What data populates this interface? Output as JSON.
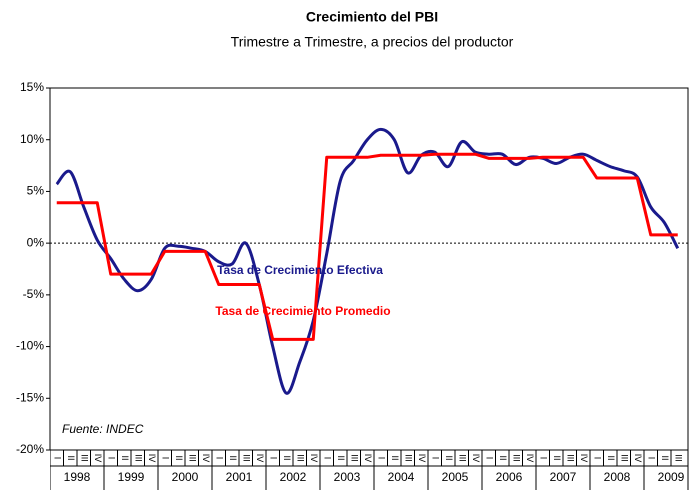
{
  "chart_data": {
    "type": "line",
    "title": "Crecimiento del PBI",
    "subtitle": "Trimestre a Trimestre, a precios del productor",
    "annotation": "Fuente: INDEC",
    "years": [
      "1998",
      "1999",
      "2000",
      "2001",
      "2002",
      "2003",
      "2004",
      "2005",
      "2006",
      "2007",
      "2008",
      "2009"
    ],
    "categories": [
      "I",
      "II",
      "III",
      "IV",
      "I",
      "II",
      "III",
      "IV",
      "I",
      "II",
      "III",
      "IV",
      "I",
      "II",
      "III",
      "IV",
      "I",
      "II",
      "III",
      "IV",
      "I",
      "II",
      "III",
      "IV",
      "I",
      "II",
      "III",
      "IV",
      "I",
      "II",
      "III",
      "IV",
      "I",
      "II",
      "III",
      "IV",
      "I",
      "II",
      "III",
      "IV",
      "I",
      "II",
      "III",
      "IV",
      "I",
      "II",
      "III"
    ],
    "series": [
      {
        "name": "Tasa de Crecimiento Efectiva",
        "color": "#1a1a8c",
        "smooth": true,
        "values": [
          5.7,
          6.9,
          3.5,
          0.3,
          -1.5,
          -3.5,
          -4.6,
          -3.5,
          -0.5,
          -0.3,
          -0.5,
          -0.8,
          -1.8,
          -2.0,
          0.0,
          -4.0,
          -10.0,
          -14.5,
          -11.5,
          -7.5,
          -1.0,
          6.0,
          8.0,
          10.0,
          11.0,
          10.0,
          6.8,
          8.5,
          8.8,
          7.4,
          9.8,
          8.8,
          8.6,
          8.6,
          7.6,
          8.3,
          8.2,
          7.7,
          8.3,
          8.6,
          8.0,
          7.4,
          7.0,
          6.4,
          3.5,
          2.0,
          -0.5
        ]
      },
      {
        "name": "Tasa de Crecimiento Promedio",
        "color": "#ff0000",
        "smooth": false,
        "values": [
          3.9,
          3.9,
          3.9,
          3.9,
          -3.0,
          -3.0,
          -3.0,
          -3.0,
          -0.8,
          -0.8,
          -0.8,
          -0.8,
          -4.0,
          -4.0,
          -4.0,
          -4.0,
          -9.3,
          -9.3,
          -9.3,
          -9.3,
          8.3,
          8.3,
          8.3,
          8.3,
          8.5,
          8.5,
          8.5,
          8.5,
          8.6,
          8.6,
          8.6,
          8.6,
          8.2,
          8.2,
          8.2,
          8.2,
          8.3,
          8.3,
          8.3,
          8.3,
          6.3,
          6.3,
          6.3,
          6.3,
          0.8,
          0.8,
          0.8
        ]
      }
    ],
    "ylim": [
      -20,
      15
    ],
    "yticks": [
      {
        "value": -20,
        "label": "-20%"
      },
      {
        "value": -15,
        "label": "-15%"
      },
      {
        "value": -10,
        "label": "-10%"
      },
      {
        "value": -5,
        "label": "-5%"
      },
      {
        "value": 0,
        "label": "0%"
      },
      {
        "value": 5,
        "label": "5%"
      },
      {
        "value": 10,
        "label": "10%"
      },
      {
        "value": 15,
        "label": "15%"
      }
    ],
    "grid": false
  }
}
